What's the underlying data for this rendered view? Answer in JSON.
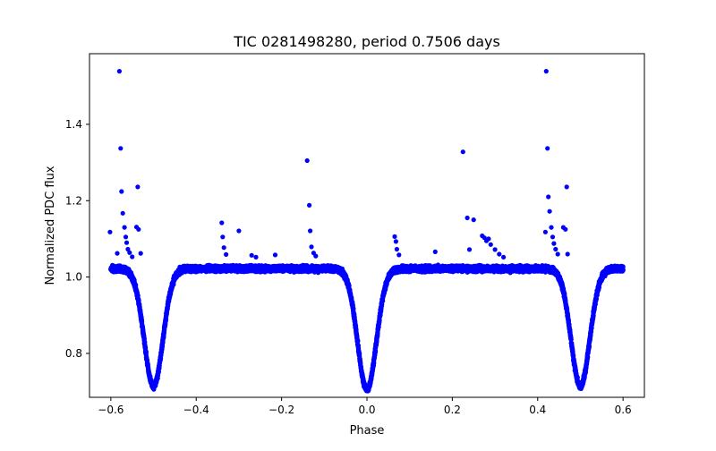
{
  "chart_data": {
    "type": "scatter",
    "title": "TIC 0281498280, period 0.7506 days",
    "xlabel": "Phase",
    "ylabel": "Normalized PDC flux",
    "xlim": [
      -0.65,
      0.65
    ],
    "ylim": [
      0.685,
      1.585
    ],
    "xticks": [
      -0.6,
      -0.4,
      -0.2,
      0.0,
      0.2,
      0.4,
      0.6
    ],
    "xtick_labels": [
      "−0.6",
      "−0.4",
      "−0.2",
      "0.0",
      "0.2",
      "0.4",
      "0.6"
    ],
    "yticks": [
      0.8,
      1.0,
      1.2,
      1.4
    ],
    "ytick_labels": [
      "0.8",
      "1.0",
      "1.2",
      "1.4"
    ],
    "grid": false,
    "series": [
      {
        "color": "#0000ff",
        "baseline": 1.022,
        "phase_range": [
          -0.6,
          0.6
        ],
        "eclipses": [
          {
            "center": -0.5,
            "min_flux": 0.715
          },
          {
            "center": 0.0,
            "min_flux": 0.705
          },
          {
            "center": 0.5,
            "min_flux": 0.715
          }
        ],
        "outliers": [
          {
            "x": -0.602,
            "y": 1.118
          },
          {
            "x": -0.585,
            "y": 1.062
          },
          {
            "x": -0.58,
            "y": 1.539
          },
          {
            "x": -0.577,
            "y": 1.337
          },
          {
            "x": -0.575,
            "y": 1.224
          },
          {
            "x": -0.572,
            "y": 1.167
          },
          {
            "x": -0.568,
            "y": 1.13
          },
          {
            "x": -0.565,
            "y": 1.105
          },
          {
            "x": -0.563,
            "y": 1.09
          },
          {
            "x": -0.56,
            "y": 1.073
          },
          {
            "x": -0.556,
            "y": 1.064
          },
          {
            "x": -0.55,
            "y": 1.053
          },
          {
            "x": -0.54,
            "y": 1.131
          },
          {
            "x": -0.537,
            "y": 1.236
          },
          {
            "x": -0.535,
            "y": 1.125
          },
          {
            "x": -0.53,
            "y": 1.062
          },
          {
            "x": -0.34,
            "y": 1.142
          },
          {
            "x": -0.338,
            "y": 1.105
          },
          {
            "x": -0.335,
            "y": 1.077
          },
          {
            "x": -0.33,
            "y": 1.059
          },
          {
            "x": -0.3,
            "y": 1.121
          },
          {
            "x": -0.27,
            "y": 1.057
          },
          {
            "x": -0.26,
            "y": 1.052
          },
          {
            "x": -0.215,
            "y": 1.058
          },
          {
            "x": -0.14,
            "y": 1.305
          },
          {
            "x": -0.135,
            "y": 1.188
          },
          {
            "x": -0.133,
            "y": 1.121
          },
          {
            "x": -0.13,
            "y": 1.079
          },
          {
            "x": -0.125,
            "y": 1.063
          },
          {
            "x": -0.12,
            "y": 1.055
          },
          {
            "x": 0.065,
            "y": 1.106
          },
          {
            "x": 0.068,
            "y": 1.093
          },
          {
            "x": 0.07,
            "y": 1.073
          },
          {
            "x": 0.075,
            "y": 1.058
          },
          {
            "x": 0.16,
            "y": 1.066
          },
          {
            "x": 0.225,
            "y": 1.328
          },
          {
            "x": 0.235,
            "y": 1.155
          },
          {
            "x": 0.25,
            "y": 1.15
          },
          {
            "x": 0.24,
            "y": 1.072
          },
          {
            "x": 0.27,
            "y": 1.108
          },
          {
            "x": 0.275,
            "y": 1.103
          },
          {
            "x": 0.28,
            "y": 1.095
          },
          {
            "x": 0.285,
            "y": 1.1
          },
          {
            "x": 0.29,
            "y": 1.085
          },
          {
            "x": 0.3,
            "y": 1.072
          },
          {
            "x": 0.31,
            "y": 1.06
          },
          {
            "x": 0.32,
            "y": 1.052
          },
          {
            "x": 0.418,
            "y": 1.118
          },
          {
            "x": 0.42,
            "y": 1.539
          },
          {
            "x": 0.423,
            "y": 1.337
          },
          {
            "x": 0.425,
            "y": 1.21
          },
          {
            "x": 0.428,
            "y": 1.172
          },
          {
            "x": 0.432,
            "y": 1.13
          },
          {
            "x": 0.435,
            "y": 1.105
          },
          {
            "x": 0.438,
            "y": 1.088
          },
          {
            "x": 0.442,
            "y": 1.073
          },
          {
            "x": 0.447,
            "y": 1.06
          },
          {
            "x": 0.46,
            "y": 1.13
          },
          {
            "x": 0.465,
            "y": 1.125
          },
          {
            "x": 0.468,
            "y": 1.236
          },
          {
            "x": 0.47,
            "y": 1.06
          }
        ]
      }
    ]
  }
}
